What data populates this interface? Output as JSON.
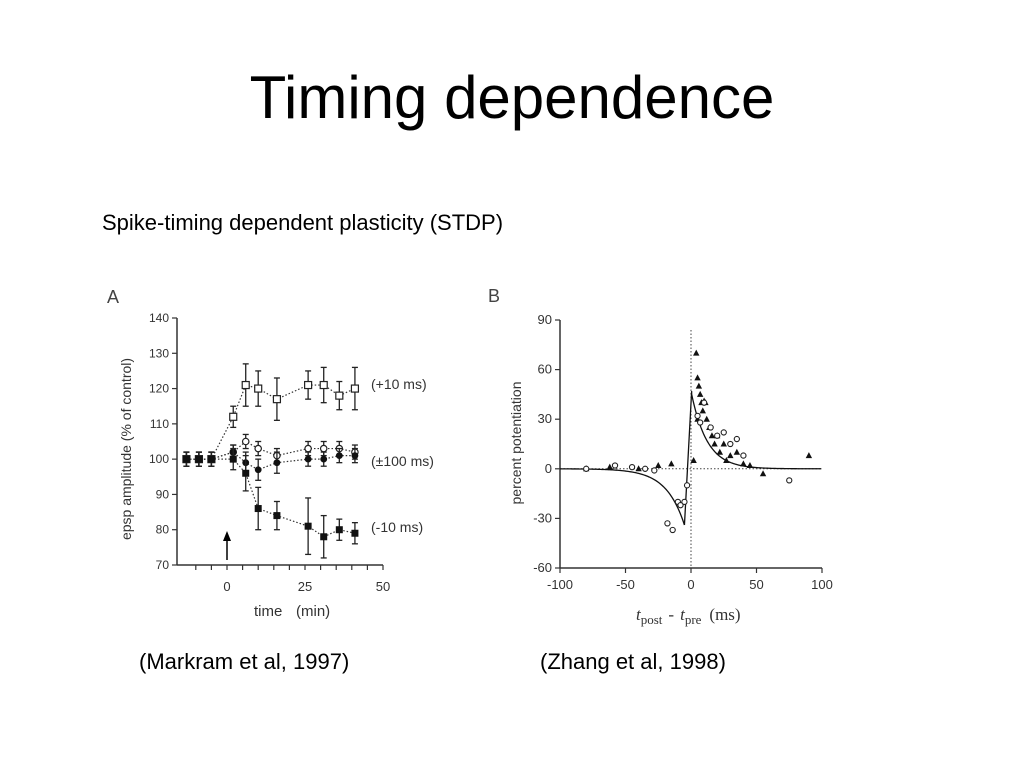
{
  "slide": {
    "title": "Timing dependence",
    "subtitle": "Spike-timing dependent plasticity (STDP)",
    "citation_a": "(Markram et al, 1997)",
    "citation_b": "(Zhang et al, 1998)"
  },
  "chart_data": [
    {
      "panel": "A",
      "type": "scatter",
      "xlabel": "time",
      "xlabel_unit": "(min)",
      "ylabel": "epsp amplitude (% of control)",
      "xlim": [
        -15,
        50
      ],
      "ylim": [
        70,
        140
      ],
      "x_ticks": [
        0,
        25,
        50
      ],
      "y_ticks": [
        70,
        80,
        90,
        100,
        110,
        120,
        130,
        140
      ],
      "grid": false,
      "annotation_arrow_x": 0,
      "series": [
        {
          "name": "(+10 ms)",
          "marker": "open-square",
          "line": "dotted",
          "x": [
            -13,
            -9,
            -5,
            2,
            6,
            10,
            16,
            26,
            31,
            36,
            41
          ],
          "y": [
            100,
            100,
            100,
            112,
            121,
            120,
            117,
            121,
            121,
            118,
            120
          ],
          "err": [
            2,
            2,
            2,
            3,
            6,
            5,
            6,
            4,
            5,
            4,
            6
          ]
        },
        {
          "name": "(±100 ms)",
          "marker": "open-circle",
          "line": "dotted",
          "x": [
            -13,
            -9,
            -5,
            2,
            6,
            10,
            16,
            26,
            31,
            36,
            41
          ],
          "y": [
            100,
            100,
            100,
            102,
            105,
            103,
            101,
            103,
            103,
            103,
            102
          ],
          "err": [
            2,
            2,
            2,
            2,
            2,
            2,
            2,
            2,
            2,
            2,
            2
          ]
        },
        {
          "name": "(±100 ms)",
          "marker": "filled-circle",
          "line": "dotted",
          "x": [
            -13,
            -9,
            -5,
            2,
            6,
            10,
            16,
            26,
            31,
            36,
            41
          ],
          "y": [
            100,
            100,
            100,
            102,
            99,
            97,
            99,
            100,
            100,
            101,
            101
          ],
          "err": [
            2,
            2,
            2,
            2,
            3,
            3,
            3,
            2,
            2,
            2,
            2
          ]
        },
        {
          "name": "(-10 ms)",
          "marker": "filled-square",
          "line": "dotted",
          "x": [
            -13,
            -9,
            -5,
            2,
            6,
            10,
            16,
            26,
            31,
            36,
            41
          ],
          "y": [
            100,
            100,
            100,
            100,
            96,
            86,
            84,
            81,
            78,
            80,
            79
          ],
          "err": [
            2,
            2,
            2,
            3,
            5,
            6,
            4,
            8,
            6,
            3,
            3
          ]
        }
      ],
      "series_labels": [
        "(+10 ms)",
        "(±100 ms)",
        "(-10 ms)"
      ]
    },
    {
      "panel": "B",
      "type": "scatter",
      "xlabel": "tpost - tpre (ms)",
      "xlabel_parts": {
        "t1": "t",
        "s1": "post",
        "dash": "-",
        "t2": "t",
        "s2": "pre",
        "unit": "(ms)"
      },
      "ylabel": "percent potentiation",
      "xlim": [
        -100,
        100
      ],
      "ylim": [
        -60,
        90
      ],
      "x_ticks": [
        -100,
        -50,
        0,
        50,
        100
      ],
      "y_ticks": [
        -60,
        -30,
        0,
        30,
        60,
        90
      ],
      "grid": false,
      "series": [
        {
          "name": "",
          "marker": "filled-triangle",
          "x": [
            -80,
            -62,
            -40,
            -25,
            -15,
            2,
            4,
            5,
            5,
            6,
            7,
            8,
            9,
            10,
            11,
            12,
            14,
            16,
            18,
            20,
            22,
            25,
            27,
            30,
            35,
            40,
            45,
            55,
            90
          ],
          "y": [
            0,
            1,
            0,
            2,
            3,
            5,
            70,
            30,
            55,
            50,
            45,
            40,
            35,
            41,
            40,
            30,
            25,
            20,
            15,
            20,
            10,
            15,
            5,
            8,
            10,
            3,
            2,
            -3,
            8
          ]
        },
        {
          "name": "",
          "marker": "open-circle",
          "x": [
            -80,
            -58,
            -45,
            -35,
            -28,
            -18,
            -14,
            -10,
            -8,
            -5,
            -3,
            5,
            7,
            10,
            15,
            20,
            25,
            30,
            35,
            40,
            75
          ],
          "y": [
            0,
            2,
            1,
            0,
            -1,
            -33,
            -37,
            -20,
            -22,
            -20,
            -10,
            32,
            28,
            40,
            25,
            20,
            22,
            15,
            18,
            8,
            -7
          ]
        }
      ],
      "fit_curve": "exponential, two branches"
    }
  ]
}
